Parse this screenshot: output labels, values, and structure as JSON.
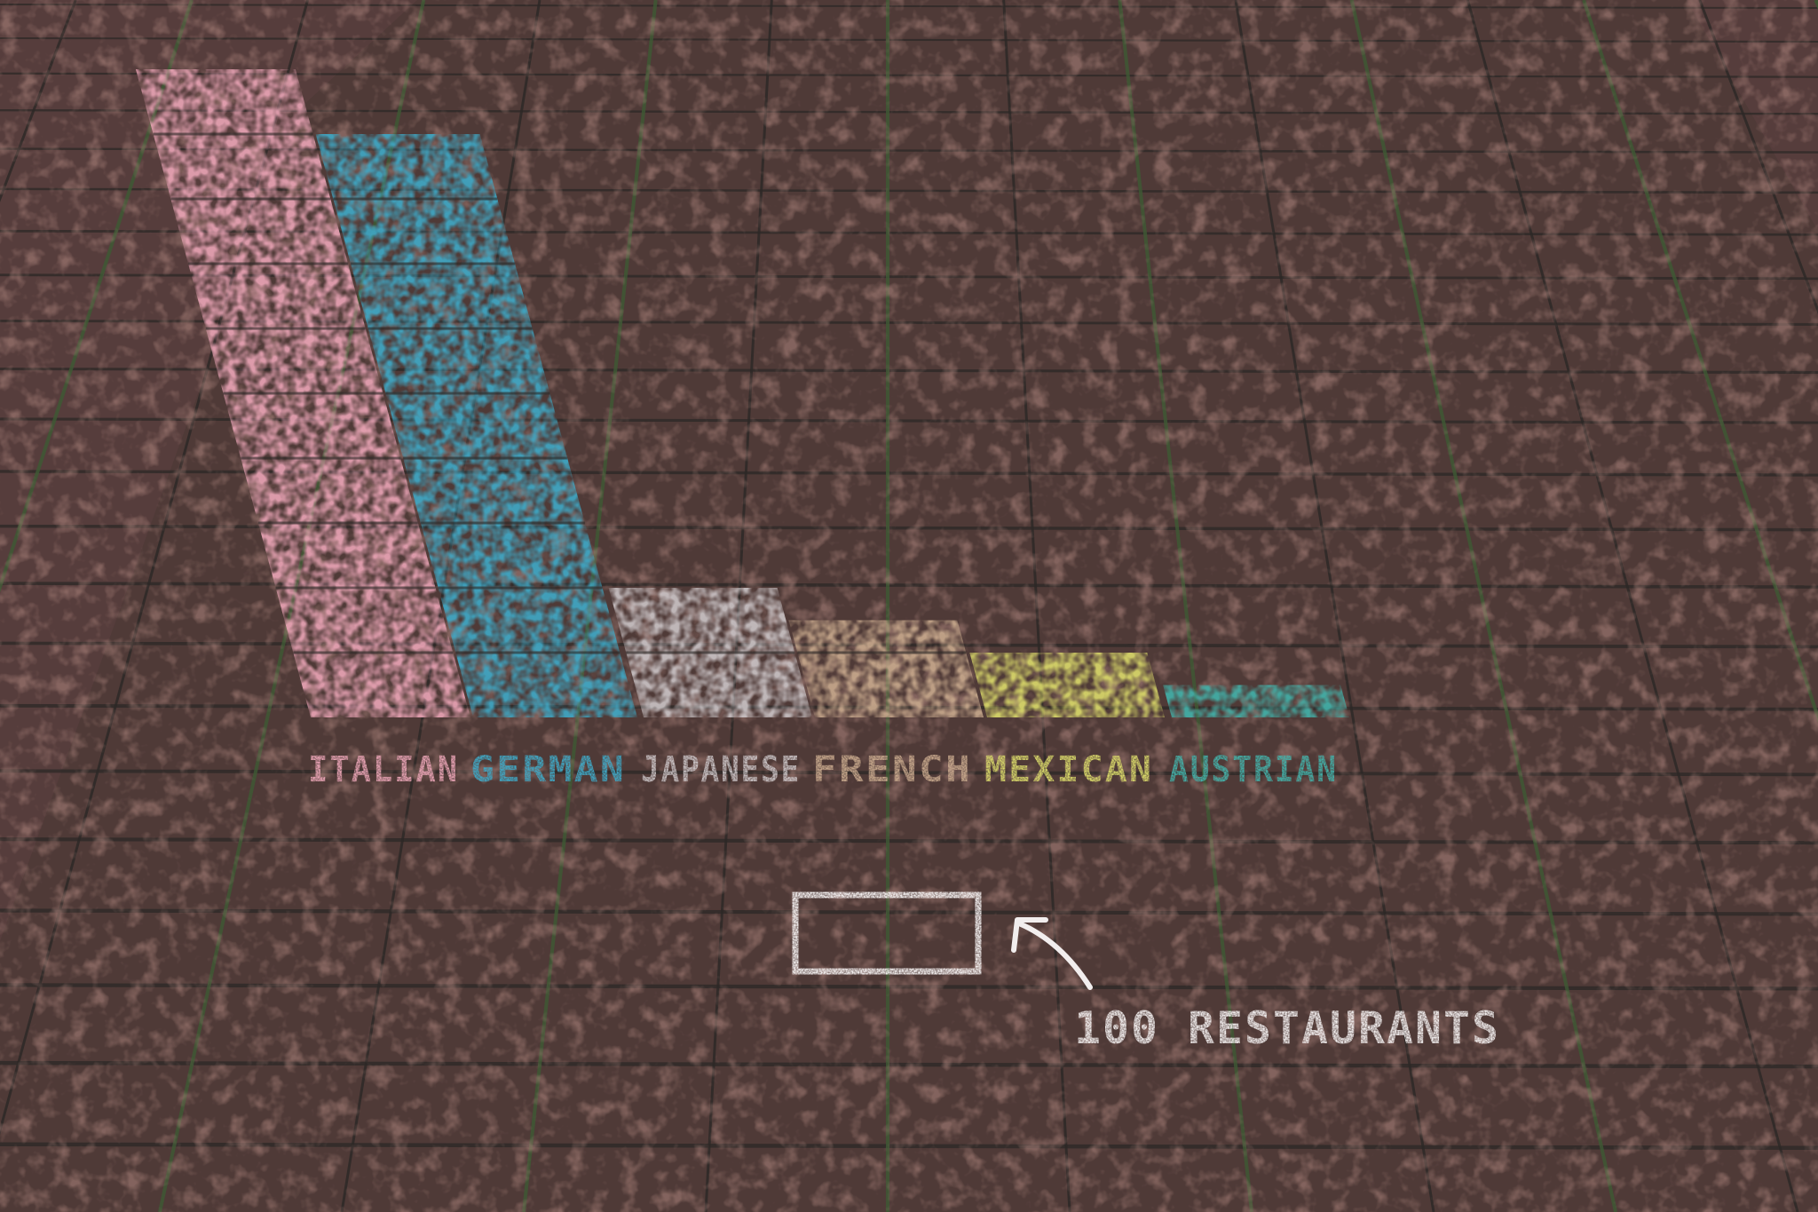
{
  "chart_data": {
    "type": "bar",
    "categories": [
      "ITALIAN",
      "GERMAN",
      "JAPANESE",
      "FRENCH",
      "MEXICAN",
      "AUSTRIAN"
    ],
    "values": [
      1000,
      900,
      200,
      150,
      100,
      50
    ],
    "unit_label": "100 RESTAURANTS",
    "unit_value": 100,
    "colors": [
      "#e8a3b4",
      "#3fa7c4",
      "#c9c2c4",
      "#c7a88c",
      "#d9d86a",
      "#43b0a8"
    ],
    "legend_color": "#f2eeee",
    "grid": false
  },
  "scene": {
    "pavement_color": "#4f3a37",
    "joint_color": "#2c2826",
    "moss_color": "#3e5a34",
    "speckle_color": "#6e3d36"
  }
}
